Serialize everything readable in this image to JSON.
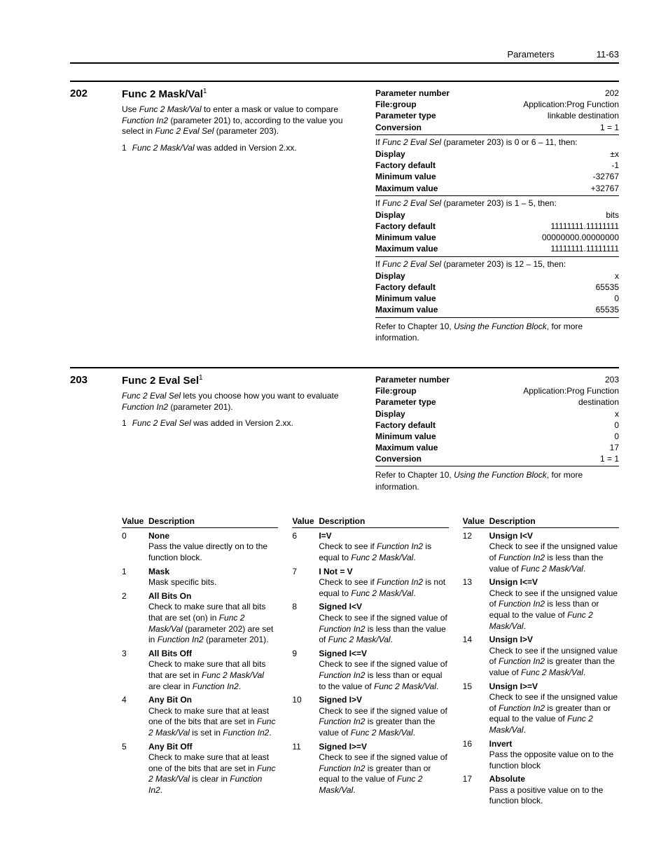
{
  "header": {
    "section": "Parameters",
    "page": "11-63"
  },
  "param202": {
    "num": "202",
    "title": "Func 2 Mask/Val",
    "title_sup": "1",
    "intro_pre": "Use ",
    "intro_it": "Func 2 Mask/Val",
    "intro_post": " to enter a mask or value to compare ",
    "intro_it2": "Function In2",
    "intro_post2": " (parameter 201) to, according to the value you select in ",
    "intro_it3": "Func 2 Eval Sel",
    "intro_post3": " (parameter 203).",
    "fn_num": "1",
    "fn_it": "Func 2 Mask/Val",
    "fn_post": " was added in Version 2.xx.",
    "r1k": "Parameter number",
    "r1v": "202",
    "r2k": "File:group",
    "r2v": "Application:Prog Function",
    "r3k": "Parameter type",
    "r3v": "linkable destination",
    "r4k": "Conversion",
    "r4v": "1 = 1",
    "c1_pre": "If ",
    "c1_it": "Func 2 Eval Sel",
    "c1_post": " (parameter 203) is 0 or 6 – 11, then:",
    "c1_r1k": "Display",
    "c1_r1v": "±x",
    "c1_r2k": "Factory default",
    "c1_r2v": "-1",
    "c1_r3k": "Minimum value",
    "c1_r3v": "-32767",
    "c1_r4k": "Maximum value",
    "c1_r4v": "+32767",
    "c2_pre": "If ",
    "c2_it": "Func 2 Eval Sel",
    "c2_post": " (parameter 203) is 1 – 5, then:",
    "c2_r1k": "Display",
    "c2_r1v": "bits",
    "c2_r2k": "Factory default",
    "c2_r2v": "11111111.11111111",
    "c2_r3k": "Minimum value",
    "c2_r3v": "00000000.00000000",
    "c2_r4k": "Maximum value",
    "c2_r4v": "11111111.11111111",
    "c3_pre": "If ",
    "c3_it": "Func 2 Eval Sel",
    "c3_post": " (parameter 203) is 12 – 15, then:",
    "c3_r1k": "Display",
    "c3_r1v": "x",
    "c3_r2k": "Factory default",
    "c3_r2v": "65535",
    "c3_r3k": "Minimum value",
    "c3_r3v": "0",
    "c3_r4k": "Maximum value",
    "c3_r4v": "65535",
    "note_pre": "Refer to Chapter 10, ",
    "note_it": "Using the Function Block",
    "note_post": ", for more information."
  },
  "param203": {
    "num": "203",
    "title": "Func 2 Eval Sel",
    "title_sup": "1",
    "intro_it": "Func 2 Eval Sel",
    "intro_post": " lets you choose how you want to evaluate ",
    "intro_it2": "Function In2",
    "intro_post2": " (parameter 201).",
    "fn_num": "1",
    "fn_it": "Func 2 Eval Sel",
    "fn_post": " was added in Version 2.xx.",
    "r1k": "Parameter number",
    "r1v": "203",
    "r2k": "File:group",
    "r2v": "Application:Prog Function",
    "r3k": "Parameter type",
    "r3v": "destination",
    "r4k": "Display",
    "r4v": "x",
    "r5k": "Factory default",
    "r5v": "0",
    "r6k": "Minimum value",
    "r6v": "0",
    "r7k": "Maximum value",
    "r7v": "17",
    "r8k": "Conversion",
    "r8v": "1 = 1",
    "note_pre": "Refer to Chapter 10, ",
    "note_it": "Using the Function Block",
    "note_post": ", for more information."
  },
  "col_hdr_v": "Value",
  "col_hdr_d": "Description",
  "v0n": "0",
  "v0t": "None",
  "v0d": "Pass the value directly on to the function block.",
  "v1n": "1",
  "v1t": "Mask",
  "v1d": "Mask specific bits.",
  "v2n": "2",
  "v2t": "All Bits On",
  "v2d_a": "Check to make sure that all bits that are set (on) in ",
  "v2d_i1": "Func 2 Mask/Val",
  "v2d_b": " (parameter 202) are set in ",
  "v2d_i2": "Function In2",
  "v2d_c": " (parameter 201).",
  "v3n": "3",
  "v3t": "All Bits Off",
  "v3d_a": "Check to make sure that all bits that are set in ",
  "v3d_i1": "Func 2 Mask/Val",
  "v3d_b": " are clear in ",
  "v3d_i2": "Function In2",
  "v3d_c": ".",
  "v4n": "4",
  "v4t": "Any Bit On",
  "v4d_a": "Check to make sure that at least one of the bits that are set in ",
  "v4d_i1": "Func 2 Mask/Val",
  "v4d_b": " is set in ",
  "v4d_i2": "Function In2",
  "v4d_c": ".",
  "v5n": "5",
  "v5t": "Any Bit Off",
  "v5d_a": "Check to make sure that at least one of the bits that are set in ",
  "v5d_i1": "Func 2 Mask/Val",
  "v5d_b": " is clear in ",
  "v5d_i2": "Function In2",
  "v5d_c": ".",
  "v6n": "6",
  "v6t": "I=V",
  "v6d_a": "Check to see if ",
  "v6d_i1": "Function In2",
  "v6d_b": " is equal to ",
  "v6d_i2": "Func 2 Mask/Val",
  "v6d_c": ".",
  "v7n": "7",
  "v7t": "I Not = V",
  "v7d_a": "Check to see if ",
  "v7d_i1": "Function In2",
  "v7d_b": " is not equal to ",
  "v7d_i2": "Func 2 Mask/Val",
  "v7d_c": ".",
  "v8n": "8",
  "v8t": "Signed I<V",
  "v8d_a": "Check to see if the signed value of ",
  "v8d_i1": "Function In2",
  "v8d_b": " is less than the value of ",
  "v8d_i2": "Func 2 Mask/Val",
  "v8d_c": ".",
  "v9n": "9",
  "v9t": "Signed I<=V",
  "v9d_a": "Check to see if the signed value of ",
  "v9d_i1": "Function In2",
  "v9d_b": " is less than or equal to the value of ",
  "v9d_i2": "Func 2 Mask/Val",
  "v9d_c": ".",
  "v10n": "10",
  "v10t": "Signed I>V",
  "v10d_a": "Check to see if the signed value of ",
  "v10d_i1": "Function In2",
  "v10d_b": " is greater than the value of ",
  "v10d_i2": "Func 2 Mask/Val",
  "v10d_c": ".",
  "v11n": "11",
  "v11t": "Signed I>=V",
  "v11d_a": "Check to see if the signed value of ",
  "v11d_i1": "Function In2",
  "v11d_b": " is greater than or equal to the value of ",
  "v11d_i2": "Func 2 Mask/Val",
  "v11d_c": ".",
  "v12n": "12",
  "v12t": "Unsign I<V",
  "v12d_a": "Check to see if the unsigned value of ",
  "v12d_i1": "Function In2",
  "v12d_b": " is less than the value of ",
  "v12d_i2": "Func 2 Mask/Val",
  "v12d_c": ".",
  "v13n": "13",
  "v13t": "Unsign I<=V",
  "v13d_a": "Check to see if the unsigned value of ",
  "v13d_i1": "Function In2",
  "v13d_b": " is less than or equal to the value of ",
  "v13d_i2": "Func 2 Mask/Val",
  "v13d_c": ".",
  "v14n": "14",
  "v14t": "Unsign I>V",
  "v14d_a": "Check to see if the unsigned value of ",
  "v14d_i1": "Function In2",
  "v14d_b": " is greater than the value of ",
  "v14d_i2": "Func 2 Mask/Val",
  "v14d_c": ".",
  "v15n": "15",
  "v15t": "Unsign I>=V",
  "v15d_a": "Check to see if the unsigned value of ",
  "v15d_i1": "Function In2",
  "v15d_b": " is greater than or equal to the value of ",
  "v15d_i2": "Func 2 Mask/Val",
  "v15d_c": ".",
  "v16n": "16",
  "v16t": "Invert",
  "v16d": "Pass the opposite value on to the function block",
  "v17n": "17",
  "v17t": "Absolute",
  "v17d": "Pass a positive value on to the function block."
}
